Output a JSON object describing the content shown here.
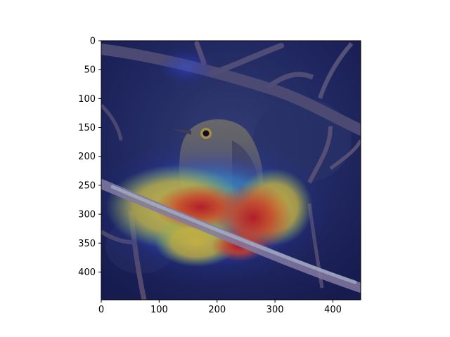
{
  "image": {
    "subject": "bird",
    "background_color": "#1d2150",
    "overlay": "heatmap"
  },
  "x_axis": {
    "ticks": [
      {
        "value": 0,
        "label": "0"
      },
      {
        "value": 100,
        "label": "100"
      },
      {
        "value": 200,
        "label": "200"
      },
      {
        "value": 300,
        "label": "300"
      },
      {
        "value": 400,
        "label": "400"
      }
    ],
    "range": [
      0,
      448
    ]
  },
  "y_axis": {
    "ticks": [
      {
        "value": 0,
        "label": "0"
      },
      {
        "value": 50,
        "label": "50"
      },
      {
        "value": 100,
        "label": "100"
      },
      {
        "value": 150,
        "label": "150"
      },
      {
        "value": 200,
        "label": "200"
      },
      {
        "value": 250,
        "label": "250"
      },
      {
        "value": 300,
        "label": "300"
      },
      {
        "value": 350,
        "label": "350"
      },
      {
        "value": 400,
        "label": "400"
      }
    ],
    "range": [
      0,
      448
    ],
    "inverted": true
  },
  "colors": {
    "heat_hot": "#d7301f",
    "heat_warm": "#f7d338",
    "heat_cool": "#6de0c4",
    "heat_base": "#2a3bd1"
  }
}
